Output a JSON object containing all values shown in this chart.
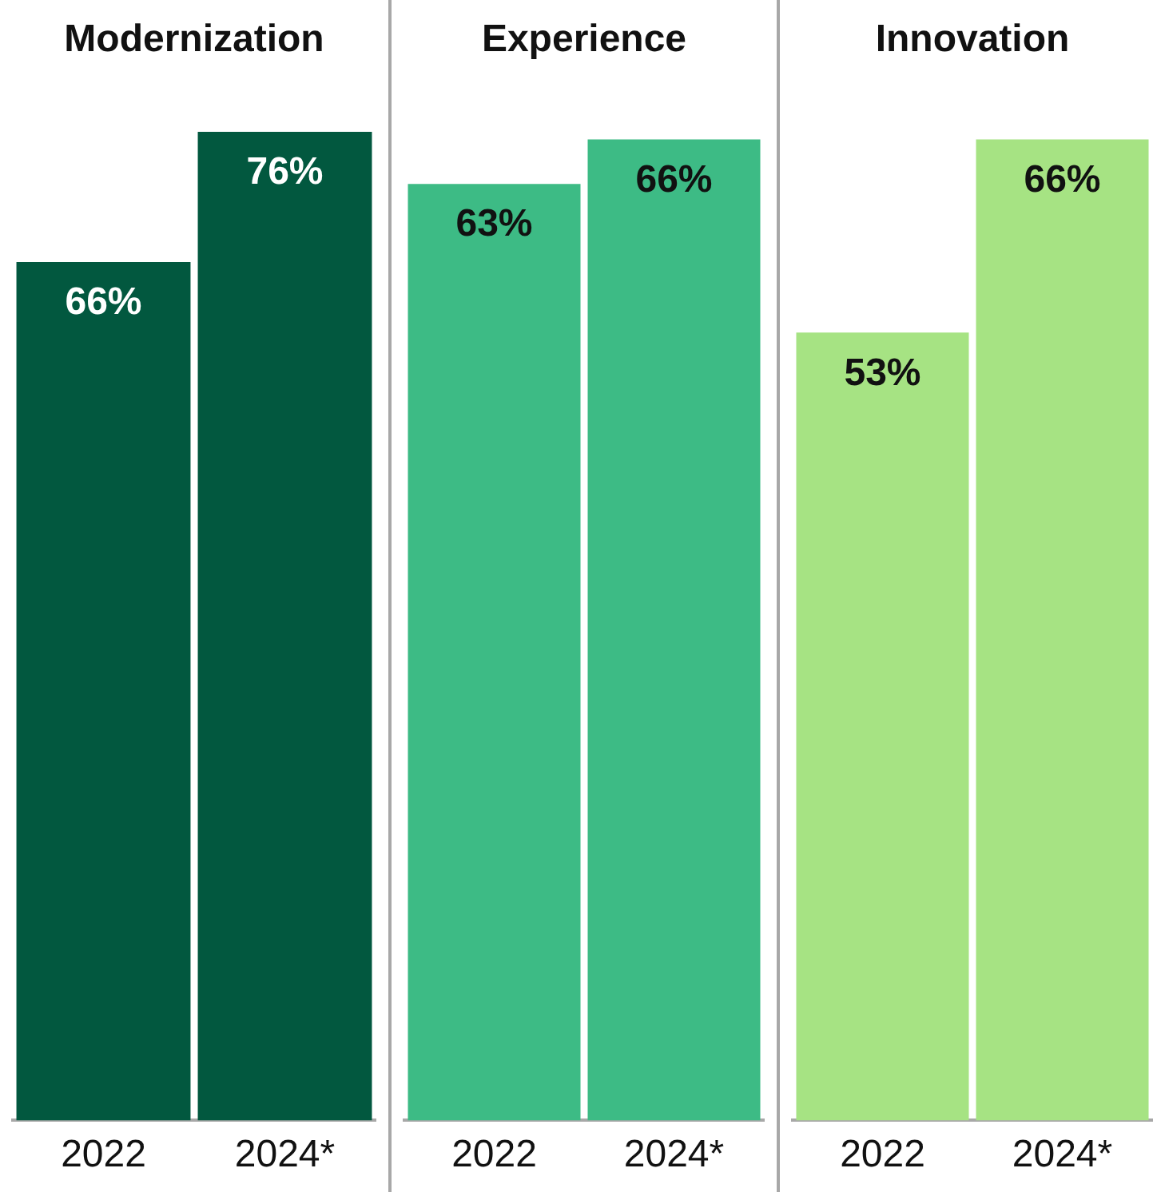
{
  "chart_data": [
    {
      "type": "bar",
      "title": "Modernization",
      "categories": [
        "2022",
        "2024*"
      ],
      "values": [
        66,
        76
      ],
      "value_labels": [
        "66%",
        "76%"
      ],
      "colors": [
        "#02583f",
        "#02583f"
      ]
    },
    {
      "type": "bar",
      "title": "Experience",
      "categories": [
        "2022",
        "2024*"
      ],
      "values": [
        63,
        66
      ],
      "value_labels": [
        "63%",
        "66%"
      ],
      "colors": [
        "#3dbb85",
        "#3dbb85"
      ]
    },
    {
      "type": "bar",
      "title": "Innovation",
      "categories": [
        "2022",
        "2024*"
      ],
      "values": [
        53,
        66
      ],
      "value_labels": [
        "53%",
        "66%"
      ],
      "colors": [
        "#a6e383",
        "#a6e383"
      ]
    }
  ]
}
